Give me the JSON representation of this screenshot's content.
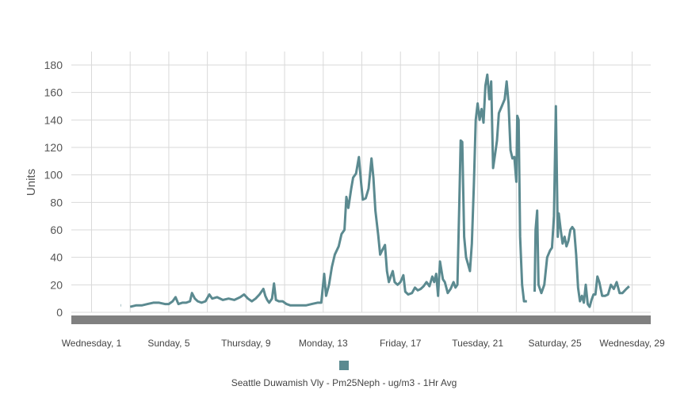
{
  "chart_data": {
    "type": "line",
    "ylabel": "Units",
    "ylim": [
      0,
      180
    ],
    "yticks": [
      0,
      20,
      40,
      60,
      80,
      100,
      120,
      140,
      160,
      180
    ],
    "xlim": [
      0,
      28.5
    ],
    "xticks": [
      {
        "x": 0,
        "label": "Wednesday, 1"
      },
      {
        "x": 4,
        "label": "Sunday, 5"
      },
      {
        "x": 8,
        "label": "Thursday, 9"
      },
      {
        "x": 12,
        "label": "Monday, 13"
      },
      {
        "x": 16,
        "label": "Friday, 17"
      },
      {
        "x": 20,
        "label": "Tuesday, 21"
      },
      {
        "x": 24,
        "label": "Saturday, 25"
      },
      {
        "x": 28,
        "label": "Wednesday, 29"
      }
    ],
    "grid": true,
    "legend_placement": "bottom-center",
    "series": [
      {
        "name": "Seattle Duwamish Vly - Pm25Neph - ug/m3 - 1Hr Avg",
        "color": "#5b8a90",
        "segments": [
          [
            [
              1.5,
              5
            ],
            [
              1.52,
              5
            ]
          ],
          [
            [
              2.0,
              4
            ],
            [
              2.3,
              5
            ],
            [
              2.6,
              5
            ],
            [
              2.9,
              6
            ],
            [
              3.2,
              7
            ],
            [
              3.5,
              7
            ],
            [
              3.8,
              6
            ],
            [
              4.0,
              6
            ],
            [
              4.2,
              8
            ],
            [
              4.35,
              11
            ],
            [
              4.5,
              6
            ],
            [
              4.7,
              7
            ],
            [
              4.9,
              7
            ],
            [
              5.1,
              8
            ],
            [
              5.2,
              14
            ],
            [
              5.35,
              10
            ],
            [
              5.5,
              8
            ],
            [
              5.7,
              7
            ],
            [
              5.9,
              8
            ],
            [
              6.1,
              13
            ],
            [
              6.25,
              10
            ],
            [
              6.5,
              11
            ],
            [
              6.8,
              9
            ],
            [
              7.1,
              10
            ],
            [
              7.4,
              9
            ],
            [
              7.7,
              11
            ],
            [
              7.9,
              13
            ],
            [
              8.1,
              10
            ],
            [
              8.3,
              8
            ],
            [
              8.5,
              10
            ],
            [
              8.7,
              13
            ],
            [
              8.9,
              17
            ],
            [
              9.0,
              12
            ],
            [
              9.1,
              9
            ],
            [
              9.2,
              7
            ],
            [
              9.35,
              10
            ],
            [
              9.45,
              21
            ],
            [
              9.55,
              9
            ],
            [
              9.7,
              8
            ],
            [
              9.9,
              8
            ],
            [
              10.1,
              6
            ],
            [
              10.3,
              5
            ],
            [
              10.5,
              5
            ],
            [
              10.8,
              5
            ],
            [
              11.1,
              5
            ],
            [
              11.4,
              6
            ],
            [
              11.7,
              7
            ],
            [
              11.9,
              7
            ],
            [
              12.05,
              28
            ],
            [
              12.15,
              12
            ],
            [
              12.3,
              20
            ],
            [
              12.45,
              33
            ],
            [
              12.6,
              42
            ],
            [
              12.8,
              48
            ],
            [
              12.95,
              57
            ],
            [
              13.1,
              60
            ],
            [
              13.2,
              84
            ],
            [
              13.3,
              76
            ],
            [
              13.45,
              90
            ],
            [
              13.55,
              98
            ],
            [
              13.7,
              101
            ],
            [
              13.85,
              113
            ],
            [
              13.95,
              96
            ],
            [
              14.05,
              82
            ],
            [
              14.2,
              83
            ],
            [
              14.35,
              90
            ],
            [
              14.5,
              112
            ],
            [
              14.6,
              98
            ],
            [
              14.7,
              74
            ],
            [
              14.85,
              56
            ],
            [
              14.95,
              42
            ],
            [
              15.05,
              45
            ],
            [
              15.2,
              49
            ],
            [
              15.3,
              30
            ],
            [
              15.4,
              22
            ],
            [
              15.5,
              26
            ],
            [
              15.6,
              30
            ],
            [
              15.7,
              22
            ],
            [
              15.85,
              20
            ],
            [
              16.0,
              22
            ],
            [
              16.15,
              27
            ],
            [
              16.25,
              15
            ],
            [
              16.4,
              13
            ],
            [
              16.6,
              14
            ],
            [
              16.75,
              18
            ],
            [
              16.9,
              16
            ],
            [
              17.05,
              17
            ],
            [
              17.2,
              19
            ],
            [
              17.35,
              22
            ],
            [
              17.5,
              19
            ],
            [
              17.65,
              26
            ],
            [
              17.75,
              22
            ],
            [
              17.85,
              28
            ],
            [
              17.95,
              12
            ],
            [
              18.05,
              37
            ],
            [
              18.2,
              24
            ],
            [
              18.3,
              22
            ],
            [
              18.45,
              14
            ],
            [
              18.6,
              17
            ],
            [
              18.75,
              22
            ],
            [
              18.85,
              18
            ],
            [
              18.95,
              20
            ],
            [
              19.05,
              80
            ],
            [
              19.12,
              125
            ],
            [
              19.2,
              124
            ],
            [
              19.3,
              55
            ],
            [
              19.4,
              40
            ],
            [
              19.5,
              35
            ],
            [
              19.6,
              30
            ],
            [
              19.7,
              50
            ],
            [
              19.8,
              92
            ],
            [
              19.9,
              140
            ],
            [
              20.0,
              152
            ],
            [
              20.1,
              140
            ],
            [
              20.2,
              148
            ],
            [
              20.3,
              138
            ],
            [
              20.4,
              165
            ],
            [
              20.5,
              173
            ],
            [
              20.6,
              155
            ],
            [
              20.7,
              168
            ],
            [
              20.8,
              105
            ],
            [
              20.9,
              115
            ],
            [
              21.0,
              125
            ],
            [
              21.1,
              145
            ],
            [
              21.25,
              150
            ],
            [
              21.4,
              155
            ],
            [
              21.5,
              168
            ],
            [
              21.6,
              152
            ],
            [
              21.7,
              118
            ],
            [
              21.8,
              112
            ],
            [
              21.9,
              113
            ],
            [
              22.0,
              95
            ],
            [
              22.05,
              143
            ],
            [
              22.12,
              140
            ],
            [
              22.2,
              55
            ],
            [
              22.3,
              20
            ],
            [
              22.4,
              8
            ],
            [
              22.55,
              8
            ]
          ],
          [
            [
              22.95,
              15
            ],
            [
              23.0,
              60
            ],
            [
              23.08,
              74
            ],
            [
              23.15,
              20
            ],
            [
              23.3,
              14
            ],
            [
              23.45,
              20
            ],
            [
              23.6,
              40
            ],
            [
              23.75,
              45
            ],
            [
              23.85,
              47
            ],
            [
              23.95,
              70
            ],
            [
              24.05,
              150
            ],
            [
              24.15,
              55
            ],
            [
              24.2,
              72
            ],
            [
              24.3,
              60
            ],
            [
              24.4,
              50
            ],
            [
              24.5,
              55
            ],
            [
              24.6,
              48
            ],
            [
              24.7,
              52
            ],
            [
              24.8,
              60
            ],
            [
              24.9,
              62
            ],
            [
              25.0,
              60
            ],
            [
              25.1,
              42
            ],
            [
              25.2,
              18
            ],
            [
              25.3,
              8
            ],
            [
              25.4,
              12
            ],
            [
              25.5,
              7
            ],
            [
              25.6,
              20
            ],
            [
              25.7,
              6
            ],
            [
              25.8,
              4
            ],
            [
              25.9,
              9
            ],
            [
              26.0,
              13
            ],
            [
              26.1,
              13
            ],
            [
              26.2,
              26
            ],
            [
              26.3,
              22
            ],
            [
              26.45,
              12
            ],
            [
              26.6,
              12
            ],
            [
              26.75,
              13
            ],
            [
              26.9,
              20
            ],
            [
              27.05,
              17
            ],
            [
              27.2,
              22
            ],
            [
              27.35,
              14
            ],
            [
              27.5,
              14
            ],
            [
              27.7,
              17
            ],
            [
              27.85,
              19
            ]
          ]
        ]
      }
    ]
  }
}
